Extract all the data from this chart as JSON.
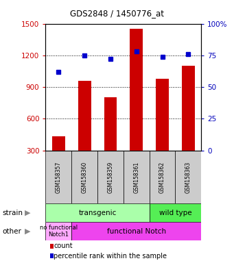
{
  "title": "GDS2848 / 1450776_at",
  "samples": [
    "GSM158357",
    "GSM158360",
    "GSM158359",
    "GSM158361",
    "GSM158362",
    "GSM158363"
  ],
  "counts": [
    430,
    960,
    800,
    1450,
    980,
    1100
  ],
  "percentiles": [
    62,
    75,
    72,
    78,
    74,
    76
  ],
  "bar_color": "#cc0000",
  "dot_color": "#0000cc",
  "ylim_left": [
    300,
    1500
  ],
  "ylim_right": [
    0,
    100
  ],
  "yticks_left": [
    300,
    600,
    900,
    1200,
    1500
  ],
  "yticks_right": [
    0,
    25,
    50,
    75,
    100
  ],
  "transgenic_color": "#aaffaa",
  "wildtype_color": "#55ee55",
  "nofunc_color": "#ffaaff",
  "functional_color": "#ee44ee",
  "legend_items": [
    {
      "label": "count",
      "color": "#cc0000"
    },
    {
      "label": "percentile rank within the sample",
      "color": "#0000cc"
    }
  ],
  "background_color": "#ffffff",
  "tick_label_color_left": "#cc0000",
  "tick_label_color_right": "#0000bb"
}
